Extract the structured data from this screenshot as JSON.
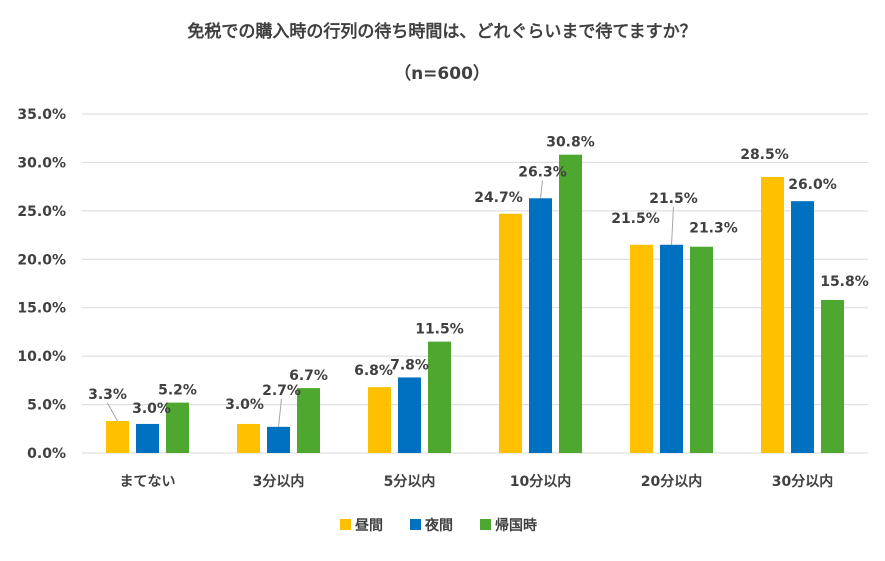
{
  "chart_data": {
    "type": "bar",
    "title": "免税での購入時の行列の待ち時間は、どれぐらいまで待てますか？",
    "subtitle": "（n=600）",
    "categories": [
      "まてない",
      "3分以内",
      "5分以内",
      "10分以内",
      "20分以内",
      "30分以内"
    ],
    "series": [
      {
        "name": "昼間",
        "color": "#FFC000",
        "values": [
          3.3,
          3.0,
          6.8,
          24.7,
          21.5,
          28.5
        ],
        "labels": [
          "3.3%",
          "3.0%",
          "6.8%",
          "24.7%",
          "21.5%",
          "28.5%"
        ]
      },
      {
        "name": "夜間",
        "color": "#0070C0",
        "values": [
          3.0,
          2.7,
          7.8,
          26.3,
          21.5,
          26.0
        ],
        "labels": [
          "3.0%",
          "2.7%",
          "7.8%",
          "26.3%",
          "21.5%",
          "26.0%"
        ]
      },
      {
        "name": "帰国時",
        "color": "#4EA72E",
        "values": [
          5.2,
          6.7,
          11.5,
          30.8,
          21.3,
          15.8
        ],
        "labels": [
          "5.2%",
          "6.7%",
          "11.5%",
          "30.8%",
          "21.3%",
          "15.8%"
        ]
      }
    ],
    "yticks": [
      "0.0%",
      "5.0%",
      "10.0%",
      "15.0%",
      "20.0%",
      "25.0%",
      "30.0%",
      "35.0%"
    ],
    "ylim": [
      0,
      35
    ],
    "ytick_step": 5,
    "grid": true,
    "gridline_color": "#d9d9d9",
    "leader_line_color": "#a6a6a6",
    "legend_position": "bottom-center",
    "xlabel": "",
    "ylabel": ""
  }
}
